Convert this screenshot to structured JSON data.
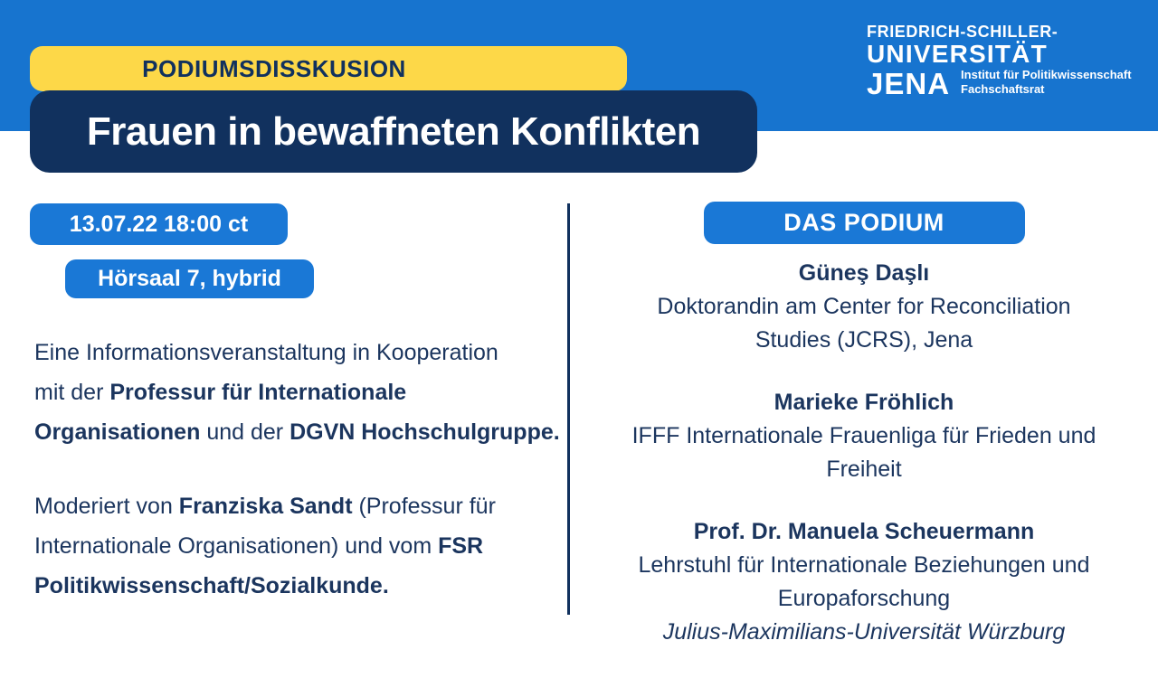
{
  "colors": {
    "band_blue": "#1774cf",
    "badge_blue": "#1a78d6",
    "navy": "#11315e",
    "yellow": "#fdd848",
    "text_navy": "#1b355e"
  },
  "logo": {
    "line1": "FRIEDRICH-SCHILLER-",
    "line2": "UNIVERSITÄT",
    "line3": "JENA",
    "sub_line1": "Institut für Politikwissenschaft",
    "sub_line2": "Fachschaftsrat"
  },
  "banner": {
    "category": "PODIUMSDISSKUSION",
    "title": "Frauen in bewaffneten Konflikten"
  },
  "event": {
    "datetime": "13.07.22 18:00 ct",
    "location": "Hörsaal 7, hybrid"
  },
  "description": {
    "p1": {
      "lines": [
        [
          {
            "t": "Eine Informationsveranstaltung in Kooperation"
          }
        ],
        [
          {
            "t": "mit der "
          },
          {
            "t": "Professur für Internationale",
            "b": true
          }
        ],
        [
          {
            "t": "Organisationen",
            "b": true
          },
          {
            "t": " und der "
          },
          {
            "t": "DGVN Hochschulgruppe.",
            "b": true
          }
        ]
      ]
    },
    "p2": {
      "lines": [
        [
          {
            "t": "Moderiert von "
          },
          {
            "t": "Franziska Sandt",
            "b": true
          },
          {
            "t": " (Professur für"
          }
        ],
        [
          {
            "t": "Internationale Organisationen) und vom "
          },
          {
            "t": "FSR",
            "b": true
          }
        ],
        [
          {
            "t": "Politikwissenschaft/Sozialkunde.",
            "b": true
          }
        ]
      ]
    }
  },
  "podium": {
    "header": "DAS PODIUM",
    "speakers": [
      {
        "name": "Güneş Daşlı",
        "lines": [
          "Doktorandin am Center for Reconciliation",
          "Studies (JCRS), Jena"
        ]
      },
      {
        "name": "Marieke Fröhlich",
        "lines": [
          "IFFF Internationale Frauenliga für Frieden und",
          "Freiheit"
        ]
      },
      {
        "name": "Prof. Dr. Manuela Scheuermann",
        "lines": [
          "Lehrstuhl für Internationale Beziehungen und",
          "Europaforschung"
        ],
        "university": "Julius-Maximilians-Universität Würzburg"
      }
    ]
  }
}
